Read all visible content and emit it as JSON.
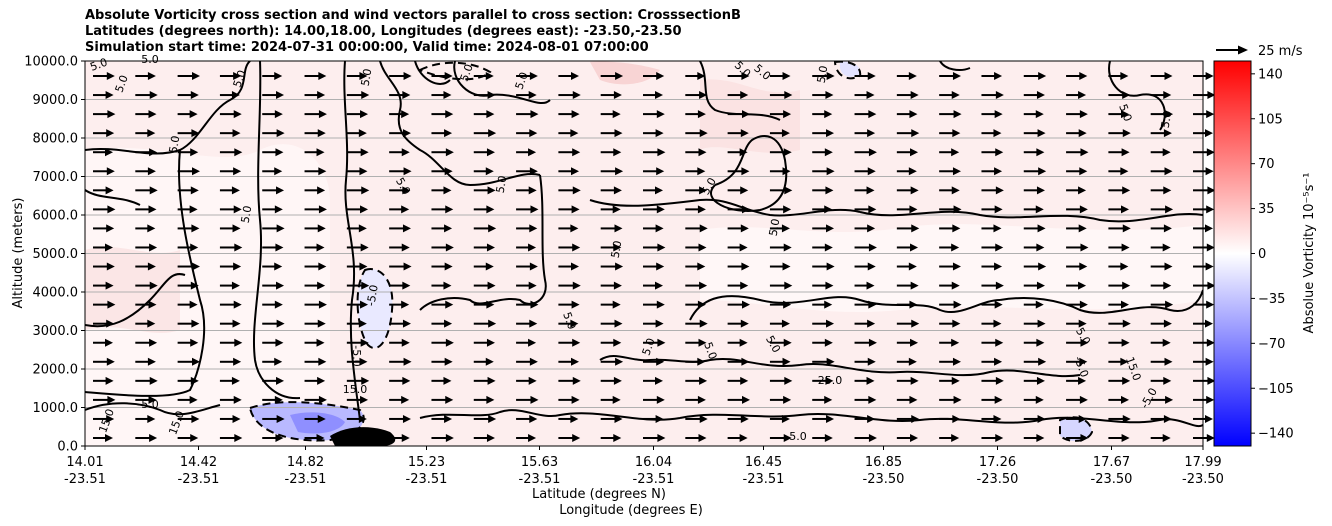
{
  "title_lines": [
    "Absolute Vorticity cross section and wind vectors parallel to cross section: CrosssectionB",
    "Latitudes (degrees north): 14.00,18.00, Longitudes (degrees east): -23.50,-23.50",
    "Simulation start time: 2024-07-31 00:00:00, Valid time: 2024-08-01 07:00:00"
  ],
  "quiver_key_label": "25 m/s",
  "chart_data": {
    "type": "heatmap",
    "ylabel": "Altitude (meters)",
    "xlabel_line1": "Latitude (degrees N)",
    "xlabel_line2": "Longitude (degrees E)",
    "y_ticks": [
      "0.0",
      "1000.0",
      "2000.0",
      "3000.0",
      "4000.0",
      "5000.0",
      "6000.0",
      "7000.0",
      "8000.0",
      "9000.0",
      "10000.0"
    ],
    "ylim": [
      0,
      10000
    ],
    "x_ticks": [
      {
        "lat": "14.01",
        "lon": "-23.51"
      },
      {
        "lat": "14.42",
        "lon": "-23.51"
      },
      {
        "lat": "14.82",
        "lon": "-23.51"
      },
      {
        "lat": "15.23",
        "lon": "-23.51"
      },
      {
        "lat": "15.63",
        "lon": "-23.51"
      },
      {
        "lat": "16.04",
        "lon": "-23.51"
      },
      {
        "lat": "16.45",
        "lon": "-23.51"
      },
      {
        "lat": "16.85",
        "lon": "-23.50"
      },
      {
        "lat": "17.26",
        "lon": "-23.50"
      },
      {
        "lat": "17.67",
        "lon": "-23.50"
      },
      {
        "lat": "17.99",
        "lon": "-23.50"
      }
    ],
    "colorbar": {
      "label": "Absolue Vorticity 10⁻⁵s⁻¹",
      "ticks": [
        "140",
        "105",
        "70",
        "35",
        "0",
        "−35",
        "−70",
        "−105",
        "−140"
      ],
      "range": [
        -150,
        150
      ],
      "colormap": "bwr",
      "colors": {
        "low": "#0000ff",
        "mid": "#ffffff",
        "high": "#ff0000"
      }
    },
    "grid": "horizontal",
    "contour_labels": [
      "5.0",
      "5.0",
      "5.0",
      "5.0",
      "5.0",
      "5.0",
      "5.0",
      "5.0",
      "5.0",
      "5.0",
      "5.0",
      "5.0",
      "5.0",
      "5.0",
      "5.0",
      "5.0",
      "5.0",
      "5.0",
      "5.0",
      "5.0",
      "5.0",
      "5.0",
      "5.0",
      "5.0",
      "-5.0",
      "-5.0",
      "-5.0",
      "-5.0",
      "15.0",
      "15.0",
      "15.0",
      "15.0",
      "25.0",
      "-5.0",
      "5.0"
    ],
    "wind_vectors": "uniform eastward arrows, approx. 15-20 m/s"
  }
}
